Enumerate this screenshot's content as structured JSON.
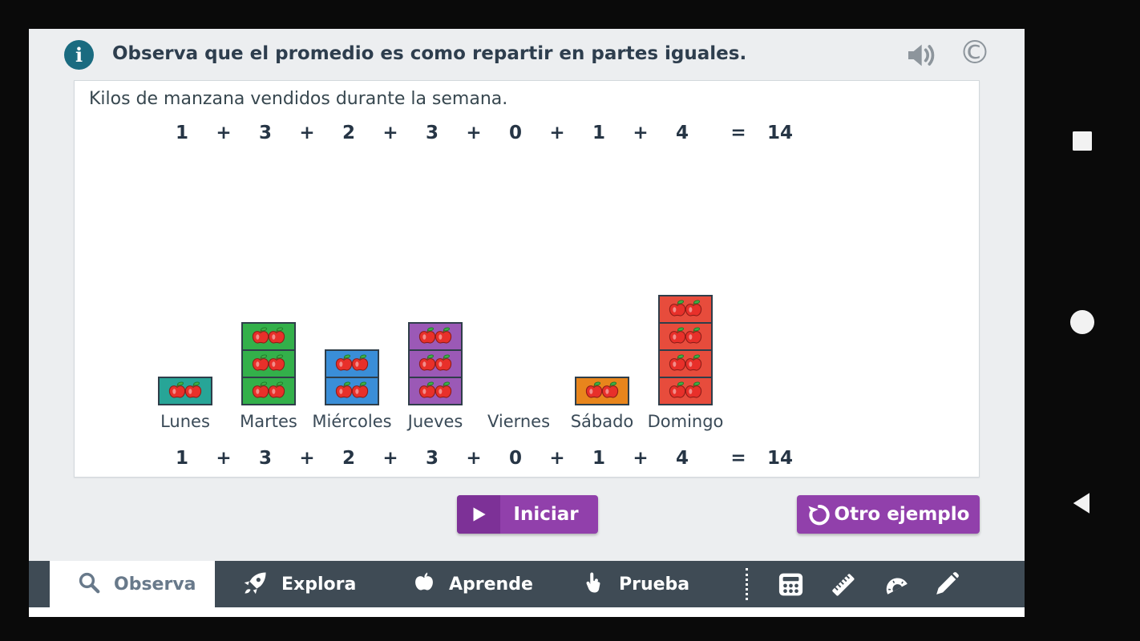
{
  "header": {
    "info_glyph": "i",
    "title": "Observa que el promedio es como repartir en partes iguales.",
    "copyright_glyph": "©"
  },
  "panel": {
    "subtitle": "Kilos de manzana vendidos durante la semana."
  },
  "chart_data": {
    "type": "bar",
    "title": "Kilos de manzana vendidos durante la semana.",
    "categories": [
      "Lunes",
      "Martes",
      "Miércoles",
      "Jueves",
      "Viernes",
      "Sábado",
      "Domingo"
    ],
    "values": [
      1,
      3,
      2,
      3,
      0,
      1,
      4
    ],
    "total": 14,
    "unit": "kilos de manzana (cada celda = 1 kilo con dos manzanas)",
    "equation": [
      "1",
      "+",
      "3",
      "+",
      "2",
      "+",
      "3",
      "+",
      "0",
      "+",
      "1",
      "+",
      "4",
      "=",
      "14"
    ],
    "equation_shown_twice": true,
    "bar_colors": [
      "#27a597",
      "#33b04a",
      "#3a8ed8",
      "#9b59b6",
      "#cccccc",
      "#e8851c",
      "#e74c3c"
    ],
    "ylim": [
      0,
      4
    ],
    "grid": false,
    "legend": false
  },
  "buttons": {
    "start": "Iniciar",
    "other_example": "Otro ejemplo"
  },
  "tabbar": {
    "tabs": [
      {
        "label": "Observa",
        "icon": "magnifier-icon",
        "active": true
      },
      {
        "label": "Explora",
        "icon": "rocket-icon",
        "active": false
      },
      {
        "label": "Aprende",
        "icon": "apple-icon",
        "active": false
      },
      {
        "label": "Prueba",
        "icon": "hand-icon",
        "active": false
      }
    ],
    "tools": [
      {
        "name": "calculator",
        "icon": "calculator-icon"
      },
      {
        "name": "ruler",
        "icon": "ruler-icon"
      },
      {
        "name": "protractor",
        "icon": "protractor-icon"
      },
      {
        "name": "pencil",
        "icon": "pencil-icon"
      }
    ]
  },
  "android_nav": [
    {
      "name": "recent-apps",
      "icon": "square-icon"
    },
    {
      "name": "home",
      "icon": "circle-icon"
    },
    {
      "name": "back",
      "icon": "back-icon"
    }
  ],
  "colors": {
    "accent_purple": "#9140ab",
    "tabbar_bg": "#3f4b55",
    "app_bg": "#eceef0",
    "info_teal": "#1a6b80",
    "text_dark": "#2e3e4e"
  }
}
